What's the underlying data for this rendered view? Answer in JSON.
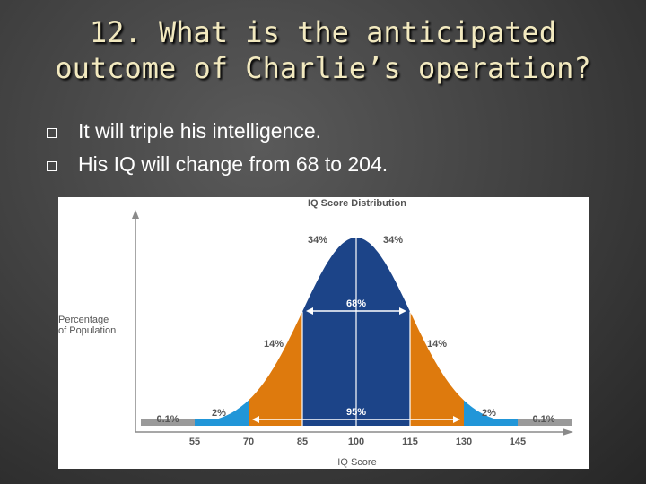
{
  "slide": {
    "title_line1": "12. What is the anticipated",
    "title_line2": "outcome of Charlie’s operation?",
    "bullets": [
      "It will triple his intelligence.",
      "His IQ will change from 68 to 204."
    ]
  },
  "chart_data": {
    "type": "area",
    "title": "IQ Score Distribution",
    "xlabel": "IQ Score",
    "ylabel": "Percentage of Population",
    "ylabel_lines": [
      "Percentage",
      "of Population"
    ],
    "mean": 100,
    "sd": 15,
    "xlim": [
      40,
      160
    ],
    "x_ticks": [
      55,
      70,
      85,
      100,
      115,
      130,
      145
    ],
    "x_tick_labels": [
      "55",
      "70",
      "85",
      "100",
      "115",
      "130",
      "145"
    ],
    "regions": [
      {
        "from": 40,
        "to": 55,
        "percent": 0.1,
        "label": "0.1%",
        "color": "#9a9a9a"
      },
      {
        "from": 55,
        "to": 70,
        "percent": 2,
        "label": "2%",
        "color": "#2196d8"
      },
      {
        "from": 70,
        "to": 85,
        "percent": 14,
        "label": "14%",
        "color": "#de7a0d"
      },
      {
        "from": 85,
        "to": 100,
        "percent": 34,
        "label": "34%",
        "color": "#1c4488"
      },
      {
        "from": 100,
        "to": 115,
        "percent": 34,
        "label": "34%",
        "color": "#1c4488"
      },
      {
        "from": 115,
        "to": 130,
        "percent": 14,
        "label": "14%",
        "color": "#de7a0d"
      },
      {
        "from": 130,
        "to": 145,
        "percent": 2,
        "label": "2%",
        "color": "#2196d8"
      },
      {
        "from": 145,
        "to": 160,
        "percent": 0.1,
        "label": "0.1%",
        "color": "#9a9a9a"
      }
    ],
    "annotations": [
      {
        "from": 85,
        "to": 115,
        "label": "68%"
      },
      {
        "from": 70,
        "to": 130,
        "label": "95%"
      }
    ],
    "colors": {
      "axis": "#8a8a8a",
      "label": "#555555",
      "divider": "#ffffff"
    }
  }
}
